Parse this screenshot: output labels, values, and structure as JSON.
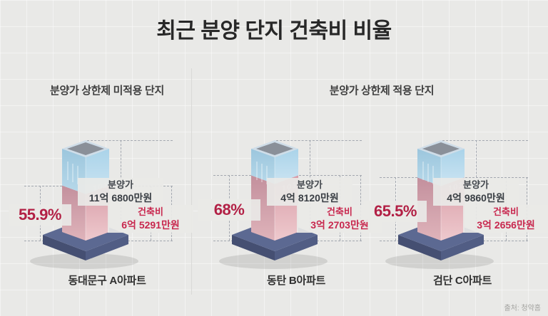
{
  "title": "최근 분양 단지 건축비 비율",
  "source": "출처: 청약홈",
  "left_section": {
    "header": "분양가 상한제 미적용 단지"
  },
  "right_section": {
    "header": "분양가 상한제 적용 단지"
  },
  "tower": {
    "building_number": "101"
  },
  "colors": {
    "background": "#e9e9e7",
    "percent_red": "#b22045",
    "cost_red": "#c8274e",
    "tower_blue": "#aed2e6",
    "tower_pink": "#dcabb4",
    "platform_navy": "#5c6992",
    "dash_gray": "#a3a8b0"
  },
  "chart_data": {
    "type": "bar",
    "title": "최근 분양 단지 건축비 비율",
    "categories": [
      "동대문구 A아파트",
      "동탄 B아파트",
      "검단 C아파트"
    ],
    "series": [
      {
        "name": "분양가(만원)",
        "values": [
          116800,
          48120,
          49860
        ]
      },
      {
        "name": "건축비(만원)",
        "values": [
          65291,
          32703,
          32656
        ]
      },
      {
        "name": "건축비 비율(%)",
        "values": [
          55.9,
          68,
          65.5
        ]
      }
    ],
    "items": [
      {
        "name": "동대문구 A아파트",
        "section": "분양가 상한제 미적용 단지",
        "percent": "55.9%",
        "ratio": 0.559,
        "price_title": "분양가",
        "price_value": "11억 6800만원",
        "cost_title": "건축비",
        "cost_value": "6억 5291만원"
      },
      {
        "name": "동탄 B아파트",
        "section": "분양가 상한제 적용 단지",
        "percent": "68%",
        "ratio": 0.68,
        "price_title": "분양가",
        "price_value": "4억 8120만원",
        "cost_title": "건축비",
        "cost_value": "3억 2703만원"
      },
      {
        "name": "검단 C아파트",
        "section": "분양가 상한제 적용 단지",
        "percent": "65.5%",
        "ratio": 0.655,
        "price_title": "분양가",
        "price_value": "4억 9860만원",
        "cost_title": "건축비",
        "cost_value": "3억 2656만원"
      }
    ]
  }
}
